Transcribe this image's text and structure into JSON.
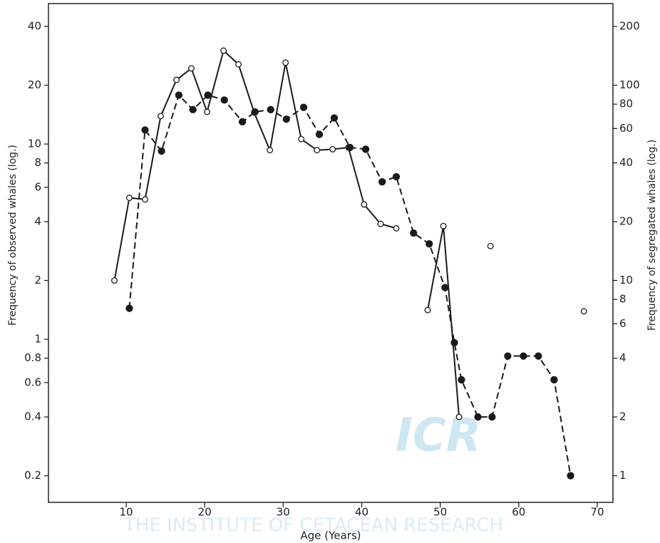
{
  "chart_data": {
    "type": "line",
    "xlabel": "Age (Years)",
    "ylabel": "Frequency of observed whales (log.)",
    "y2label": "Frequency of segregated whales (log.)",
    "annotations": [
      "ICR",
      "THE INSTITUTE OF CETACEAN RESEARCH"
    ],
    "xlim": [
      0.1,
      72
    ],
    "xticks": [
      10,
      20,
      30,
      40,
      50,
      60,
      70
    ],
    "ylog": true,
    "ylim": [
      0.146,
      52.4
    ],
    "yticks": [
      0.2,
      0.4,
      0.6,
      0.8,
      1,
      2,
      4,
      6,
      8,
      10,
      20,
      40
    ],
    "y2lim": [
      0.73,
      262
    ],
    "y2ticks": [
      1,
      2,
      4,
      6,
      8,
      10,
      20,
      40,
      60,
      80,
      100,
      200
    ],
    "series": [
      {
        "color": "#1a1a1a",
        "marker": "open",
        "dashed": false,
        "x": [
          8.5,
          10.4,
          12.4,
          14.4,
          16.4,
          18.3,
          20.3,
          22.4,
          24.3,
          26.3,
          28.3,
          30.3,
          32.3,
          34.3,
          36.3,
          38.3,
          40.3,
          42.4,
          44.4,
          null,
          48.4,
          50.4,
          52.4,
          null,
          56.4,
          null,
          68.3
        ],
        "values": [
          2,
          5.3,
          5.2,
          13.9,
          21.3,
          24.4,
          14.6,
          30.1,
          25.6,
          14.5,
          9.3,
          26.1,
          10.6,
          9.3,
          9.4,
          9.6,
          4.9,
          3.9,
          3.7,
          null,
          1.41,
          3.8,
          0.4,
          null,
          3,
          null,
          1.39
        ]
      },
      {
        "color": "#1a1a1a",
        "marker": "filled",
        "dashed": true,
        "axis": "y2",
        "x": [
          10.4,
          12.4,
          14.5,
          16.7,
          18.5,
          20.4,
          22.5,
          24.8,
          26.4,
          28.4,
          30.4,
          32.6,
          34.6,
          36.5,
          38.5,
          40.5,
          42.6,
          44.4,
          46.6,
          48.6,
          50.6,
          51.8,
          52.7,
          54.8,
          56.6,
          58.6,
          60.6,
          62.5,
          64.5,
          66.6
        ],
        "values": [
          7.2,
          59,
          46,
          89,
          75,
          89,
          84,
          65,
          73,
          75,
          67,
          77,
          56,
          68,
          48,
          47,
          32,
          34,
          17.5,
          15.4,
          9.2,
          4.8,
          3.1,
          2,
          2,
          4.1,
          4.1,
          4.1,
          3.1,
          1
        ]
      }
    ]
  }
}
